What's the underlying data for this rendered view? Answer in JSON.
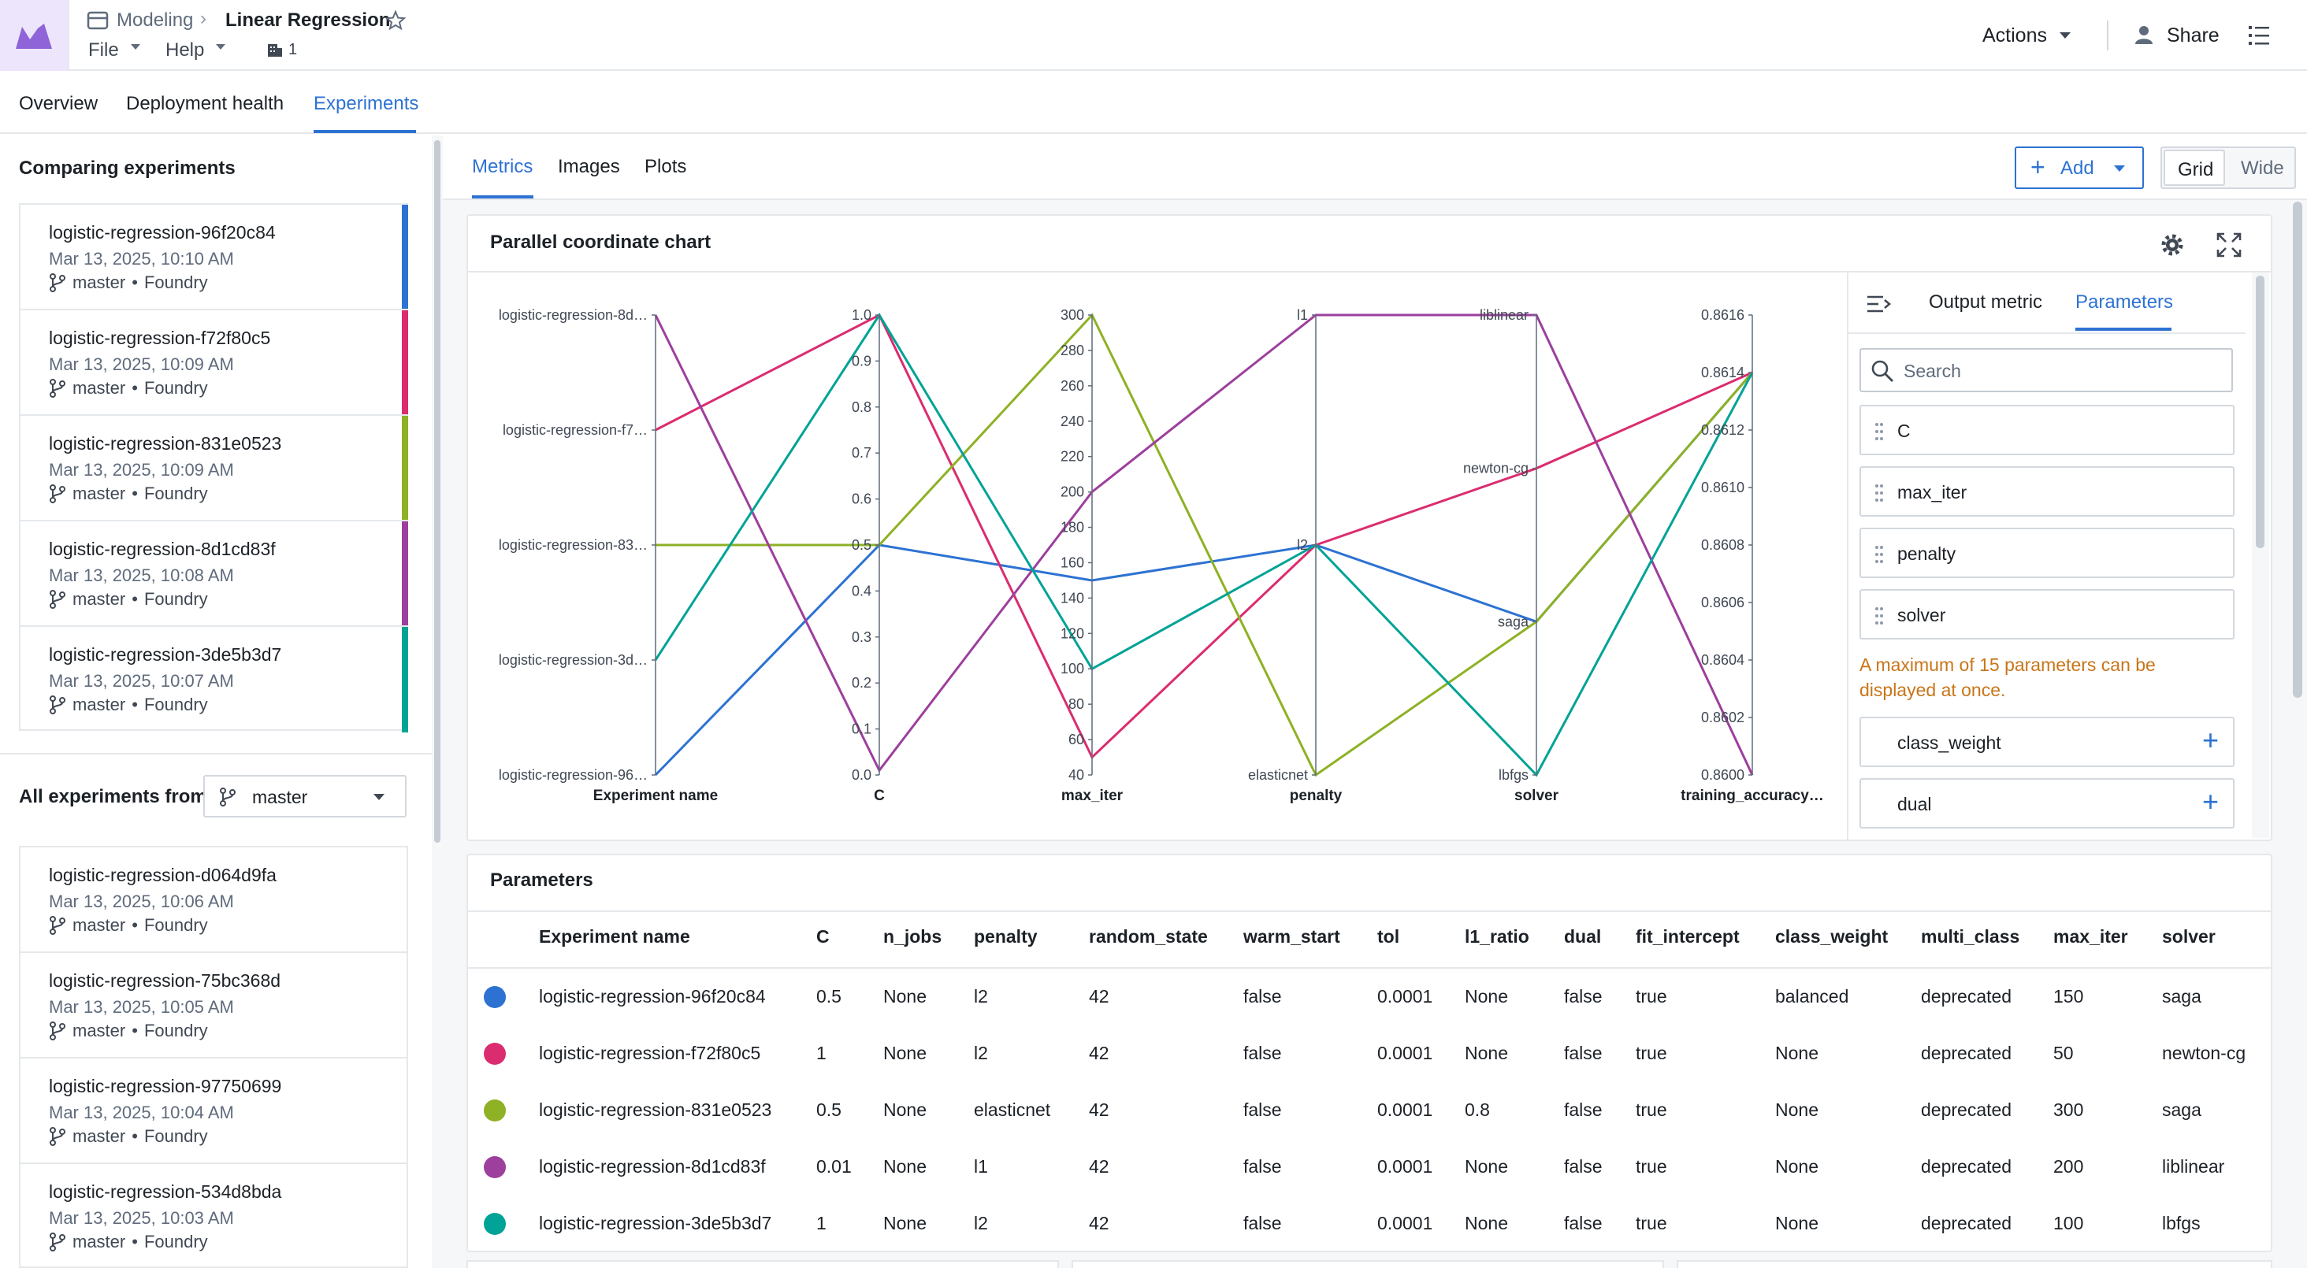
{
  "header": {
    "breadcrumb_parent": "Modeling",
    "title": "Linear Regression",
    "menu_file": "File",
    "menu_help": "Help",
    "count": "1",
    "actions": "Actions",
    "share": "Share"
  },
  "top_tabs": [
    "Overview",
    "Deployment health",
    "Experiments"
  ],
  "left": {
    "comparing_title": "Comparing experiments",
    "comparing": [
      {
        "name": "logistic-regression-96f20c84",
        "date": "Mar 13, 2025, 10:10 AM",
        "branch": "master",
        "source": "Foundry",
        "color": "#2d72d2"
      },
      {
        "name": "logistic-regression-f72f80c5",
        "date": "Mar 13, 2025, 10:09 AM",
        "branch": "master",
        "source": "Foundry",
        "color": "#db2c6f"
      },
      {
        "name": "logistic-regression-831e0523",
        "date": "Mar 13, 2025, 10:09 AM",
        "branch": "master",
        "source": "Foundry",
        "color": "#8eb125"
      },
      {
        "name": "logistic-regression-8d1cd83f",
        "date": "Mar 13, 2025, 10:08 AM",
        "branch": "master",
        "source": "Foundry",
        "color": "#9d3f9d"
      },
      {
        "name": "logistic-regression-3de5b3d7",
        "date": "Mar 13, 2025, 10:07 AM",
        "branch": "master",
        "source": "Foundry",
        "color": "#00a396"
      }
    ],
    "all_label": "All experiments from",
    "branch_select": "master",
    "all": [
      {
        "name": "logistic-regression-d064d9fa",
        "date": "Mar 13, 2025, 10:06 AM",
        "branch": "master",
        "source": "Foundry"
      },
      {
        "name": "logistic-regression-75bc368d",
        "date": "Mar 13, 2025, 10:05 AM",
        "branch": "master",
        "source": "Foundry"
      },
      {
        "name": "logistic-regression-97750699",
        "date": "Mar 13, 2025, 10:04 AM",
        "branch": "master",
        "source": "Foundry"
      },
      {
        "name": "logistic-regression-534d8bda",
        "date": "Mar 13, 2025, 10:03 AM",
        "branch": "master",
        "source": "Foundry"
      }
    ]
  },
  "sub_tabs": [
    "Metrics",
    "Images",
    "Plots"
  ],
  "toolbar": {
    "add": "Add",
    "grid": "Grid",
    "wide": "Wide"
  },
  "chart_panel": {
    "title": "Parallel coordinate chart"
  },
  "chart_data": {
    "type": "parallel-coordinates",
    "axes": [
      {
        "name": "Experiment name",
        "ticks": [
          "logistic-regression-8d…",
          "logistic-regression-f7…",
          "logistic-regression-83…",
          "logistic-regression-3d…",
          "logistic-regression-96…"
        ]
      },
      {
        "name": "C",
        "ticks": [
          "1.0",
          "0.9",
          "0.8",
          "0.7",
          "0.6",
          "0.5",
          "0.4",
          "0.3",
          "0.2",
          "0.1",
          "0.0"
        ],
        "range": [
          0,
          1
        ]
      },
      {
        "name": "max_iter",
        "ticks": [
          "300",
          "280",
          "260",
          "240",
          "220",
          "200",
          "180",
          "160",
          "140",
          "120",
          "100",
          "80",
          "60",
          "40"
        ],
        "range": [
          40,
          300
        ]
      },
      {
        "name": "penalty",
        "ticks": [
          "l1",
          "l2",
          "elasticnet"
        ]
      },
      {
        "name": "solver",
        "ticks": [
          "liblinear",
          "newton-cg",
          "saga",
          "lbfgs"
        ]
      },
      {
        "name": "training_accuracy…",
        "ticks": [
          "0.8616",
          "0.8614",
          "0.8612",
          "0.8610",
          "0.8608",
          "0.8606",
          "0.8604",
          "0.8602",
          "0.8600"
        ],
        "range": [
          0.86,
          0.8616
        ]
      }
    ],
    "series": [
      {
        "name": "logistic-regression-96f20c84",
        "color": "#2d72d2",
        "values": [
          "logistic-regression-96…",
          0.5,
          150,
          "l2",
          "saga",
          0.8614
        ]
      },
      {
        "name": "logistic-regression-f72f80c5",
        "color": "#db2c6f",
        "values": [
          "logistic-regression-f7…",
          1,
          50,
          "l2",
          "newton-cg",
          0.8614
        ]
      },
      {
        "name": "logistic-regression-831e0523",
        "color": "#8eb125",
        "values": [
          "logistic-regression-83…",
          0.5,
          300,
          "elasticnet",
          "saga",
          0.8614
        ]
      },
      {
        "name": "logistic-regression-8d1cd83f",
        "color": "#9d3f9d",
        "values": [
          "logistic-regression-8d…",
          0.01,
          200,
          "l1",
          "liblinear",
          0.86
        ]
      },
      {
        "name": "logistic-regression-3de5b3d7",
        "color": "#00a396",
        "values": [
          "logistic-regression-3d…",
          1,
          100,
          "l2",
          "lbfgs",
          0.8614
        ]
      }
    ]
  },
  "side": {
    "tab_output": "Output metric",
    "tab_params": "Parameters",
    "search_placeholder": "Search",
    "params": [
      "C",
      "max_iter",
      "penalty",
      "solver"
    ],
    "warning": "A maximum of 15 parameters can be displayed at once.",
    "extra": [
      "class_weight",
      "dual"
    ]
  },
  "params_table": {
    "title": "Parameters",
    "columns": [
      "Experiment name",
      "C",
      "n_jobs",
      "penalty",
      "random_state",
      "warm_start",
      "tol",
      "l1_ratio",
      "dual",
      "fit_intercept",
      "class_weight",
      "multi_class",
      "max_iter",
      "solver"
    ],
    "rows": [
      {
        "color": "#2d72d2",
        "cells": [
          "logistic-regression-96f20c84",
          "0.5",
          "None",
          "l2",
          "42",
          "false",
          "0.0001",
          "None",
          "false",
          "true",
          "balanced",
          "deprecated",
          "150",
          "saga"
        ]
      },
      {
        "color": "#db2c6f",
        "cells": [
          "logistic-regression-f72f80c5",
          "1",
          "None",
          "l2",
          "42",
          "false",
          "0.0001",
          "None",
          "false",
          "true",
          "None",
          "deprecated",
          "50",
          "newton-cg"
        ]
      },
      {
        "color": "#8eb125",
        "cells": [
          "logistic-regression-831e0523",
          "0.5",
          "None",
          "elasticnet",
          "42",
          "false",
          "0.0001",
          "0.8",
          "false",
          "true",
          "None",
          "deprecated",
          "300",
          "saga"
        ]
      },
      {
        "color": "#9d3f9d",
        "cells": [
          "logistic-regression-8d1cd83f",
          "0.01",
          "None",
          "l1",
          "42",
          "false",
          "0.0001",
          "None",
          "false",
          "true",
          "None",
          "deprecated",
          "200",
          "liblinear"
        ]
      },
      {
        "color": "#00a396",
        "cells": [
          "logistic-regression-3de5b3d7",
          "1",
          "None",
          "l2",
          "42",
          "false",
          "0.0001",
          "None",
          "false",
          "true",
          "None",
          "deprecated",
          "100",
          "lbfgs"
        ]
      }
    ]
  }
}
